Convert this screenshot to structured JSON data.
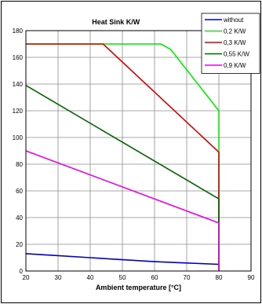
{
  "chart_data": {
    "type": "line",
    "title": "Heat Sink K/W",
    "xlabel": "Ambient temperature [°C]",
    "ylabel": "",
    "xlim": [
      20,
      90
    ],
    "ylim": [
      0,
      180
    ],
    "xticks": [
      20,
      30,
      40,
      50,
      60,
      70,
      80,
      90
    ],
    "yticks": [
      0,
      20,
      40,
      60,
      80,
      100,
      120,
      140,
      160,
      180
    ],
    "grid": true,
    "legend_position": "top-right",
    "series": [
      {
        "name": "without",
        "color": "#0000cc",
        "points": [
          [
            20,
            13
          ],
          [
            30,
            11.5
          ],
          [
            40,
            10
          ],
          [
            50,
            8.5
          ],
          [
            60,
            7
          ],
          [
            70,
            6
          ],
          [
            80,
            5
          ],
          [
            80,
            0
          ]
        ]
      },
      {
        "name": "0,2 K/W",
        "color": "#00ee00",
        "points": [
          [
            20,
            170
          ],
          [
            62,
            170
          ],
          [
            65,
            166
          ],
          [
            80,
            120
          ],
          [
            80,
            0
          ]
        ]
      },
      {
        "name": "0,3 K/W",
        "color": "#dd0000",
        "points": [
          [
            20,
            170
          ],
          [
            44,
            170
          ],
          [
            80,
            89
          ],
          [
            80,
            0
          ]
        ]
      },
      {
        "name": "0,55 K/W",
        "color": "#006600",
        "points": [
          [
            20,
            139
          ],
          [
            80,
            54
          ],
          [
            80,
            0
          ]
        ]
      },
      {
        "name": "0,9 K/W",
        "color": "#ee00ee",
        "points": [
          [
            20,
            90
          ],
          [
            80,
            36
          ],
          [
            80,
            0
          ]
        ]
      }
    ]
  }
}
